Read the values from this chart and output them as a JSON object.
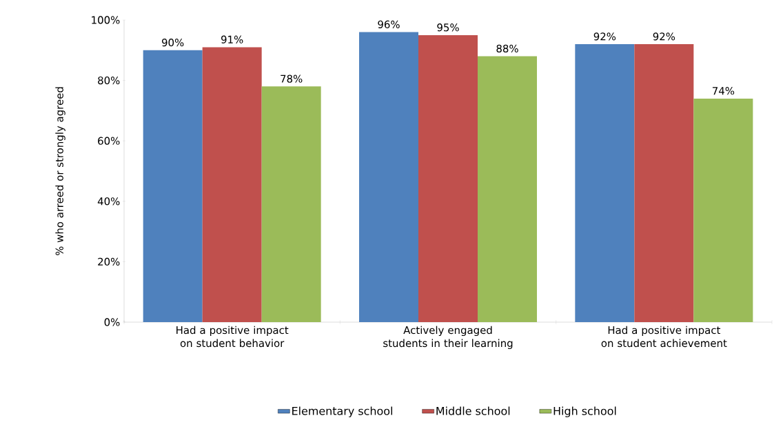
{
  "chart_data": {
    "type": "bar",
    "ylabel": "% who arreed or strongly agreed",
    "categories": [
      "Had a positive impact on student behavior",
      "Actively engaged students in their learning",
      "Had a positive impact on student achievement"
    ],
    "series": [
      {
        "name": "Elementary school",
        "color": "#4f81bd",
        "values": [
          90,
          96,
          92
        ],
        "value_labels": [
          "90%",
          "96%",
          "92%"
        ]
      },
      {
        "name": "Middle school",
        "color": "#c0504d",
        "values": [
          91,
          95,
          92
        ],
        "value_labels": [
          "91%",
          "95%",
          "92%"
        ]
      },
      {
        "name": "High school",
        "color": "#9bbb59",
        "values": [
          78,
          88,
          74
        ],
        "value_labels": [
          "78%",
          "88%",
          "74%"
        ]
      }
    ],
    "ylim": [
      0,
      100
    ],
    "yticks": [
      {
        "value": 0,
        "label": "0%"
      },
      {
        "value": 20,
        "label": "20%"
      },
      {
        "value": 40,
        "label": "40%"
      },
      {
        "value": 60,
        "label": "60%"
      },
      {
        "value": 80,
        "label": "80%"
      },
      {
        "value": 100,
        "label": "100%"
      }
    ],
    "grid": false,
    "legend": "bottom"
  }
}
